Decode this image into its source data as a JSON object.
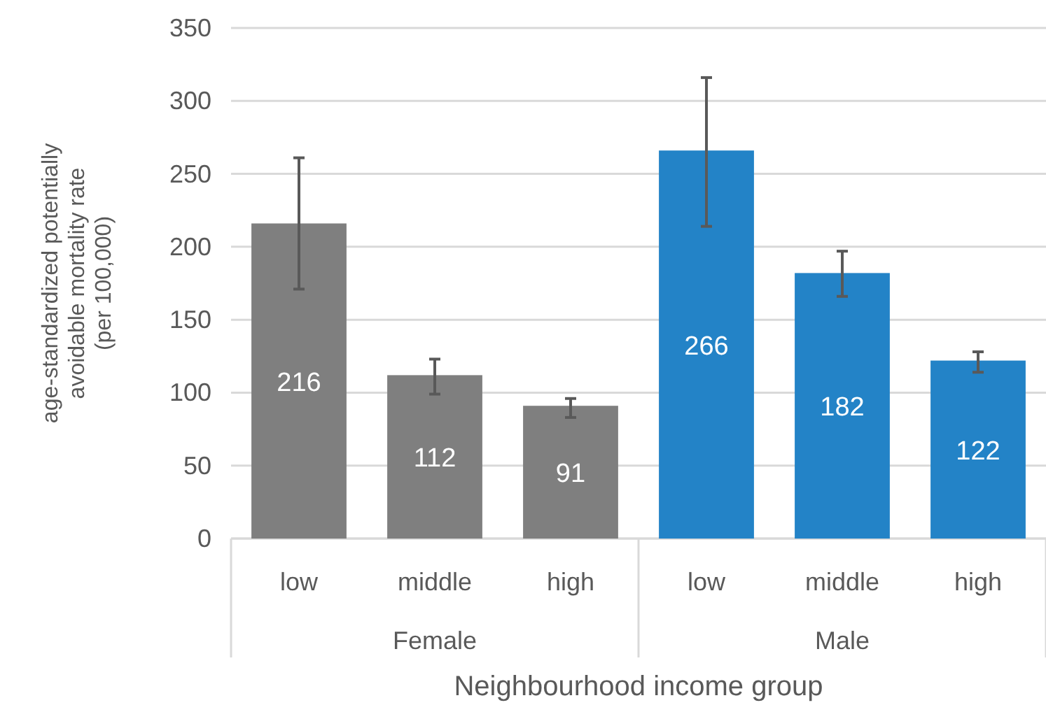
{
  "chart_data": {
    "type": "bar",
    "xlabel": "Neighbourhood income group",
    "ylabel": "age-standardized potentially\navoidable mortality rate\n(per 100,000)",
    "categories": [
      "low",
      "middle",
      "high",
      "low",
      "middle",
      "high"
    ],
    "values": [
      216,
      112,
      91,
      266,
      182,
      122
    ],
    "colors": [
      "#7f7f7f",
      "#7f7f7f",
      "#7f7f7f",
      "#2383c7",
      "#2383c7",
      "#2383c7"
    ],
    "errors": [
      [
        171,
        261
      ],
      [
        99,
        123
      ],
      [
        83,
        96
      ],
      [
        214,
        316
      ],
      [
        166,
        197
      ],
      [
        114,
        128
      ]
    ],
    "annotations": [
      "Female",
      "Male"
    ],
    "ylim": [
      0,
      350
    ],
    "yticks": [
      0,
      50,
      100,
      150,
      200,
      250,
      300,
      350
    ],
    "grid": "y",
    "data_labels": true
  }
}
